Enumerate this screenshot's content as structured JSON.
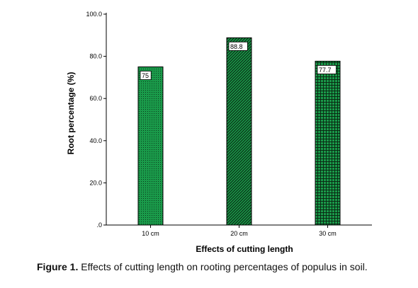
{
  "chart_data": {
    "type": "bar",
    "categories": [
      "10 cm",
      "20 cm",
      "30 cm"
    ],
    "values": [
      75,
      88.8,
      77.7
    ],
    "value_labels": [
      "75",
      "88.8",
      "77.7"
    ],
    "xlabel": "Effects of cutting length",
    "ylabel": "Root percentage (%)",
    "ylim": [
      0,
      100
    ],
    "yticks": [
      0,
      20,
      40,
      60,
      80,
      100
    ],
    "ytick_labels": [
      ".0",
      "20.0",
      "40.0",
      "60.0",
      "80.0",
      "100.0"
    ],
    "bar_color": "#1a9a4a",
    "bar_patterns": [
      "dots",
      "diagonal-hatch",
      "grid"
    ],
    "grid": false,
    "legend": "none"
  },
  "caption": {
    "label": "Figure 1.",
    "text": "Effects of cutting length on rooting percentages of populus in soil."
  }
}
